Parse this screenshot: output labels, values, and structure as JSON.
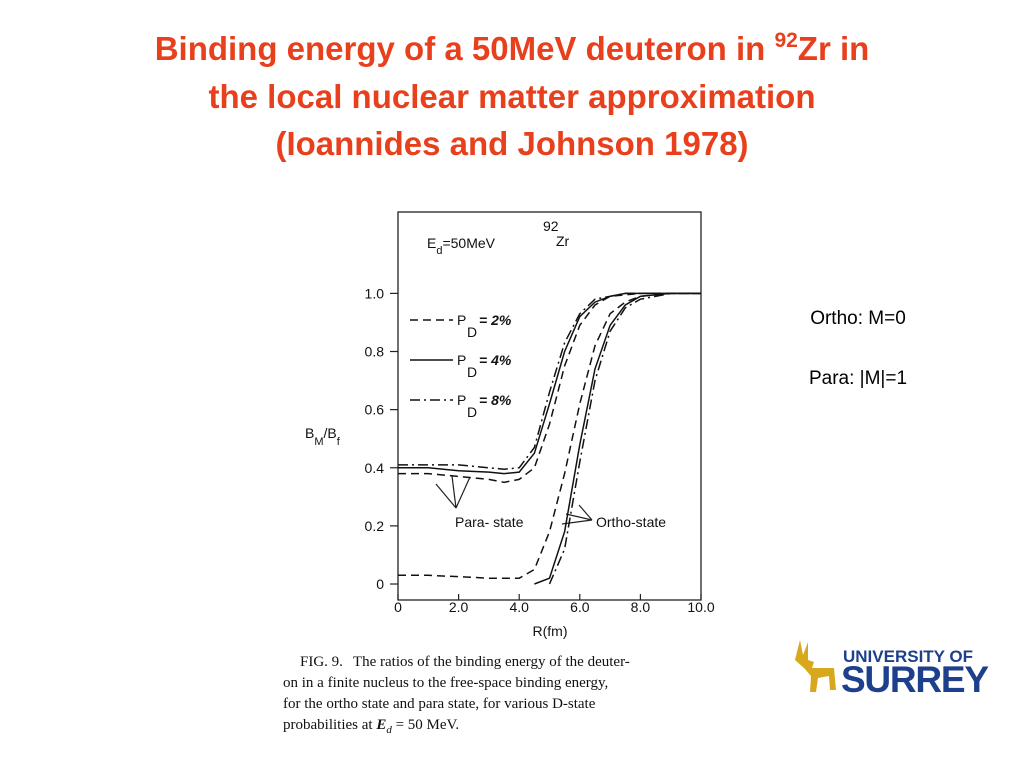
{
  "slide": {
    "title": [
      "Binding energy of a 50MeV deuteron in ",
      "92",
      "Zr in",
      "the local nuclear matter approximation",
      "(Ioannides and Johnson 1978)"
    ],
    "notes": [
      "Ortho: M=0",
      "Para: |M|=1"
    ],
    "caption": [
      "FIG. 9.",
      "The ratios of the binding energy of the deuter-",
      "on in a finite nucleus to the free-space binding energy,",
      "for the ortho state and para state,  for various D-state",
      "probabilities at ",
      "E",
      "d",
      " = 50 MeV."
    ],
    "logo": [
      "UNIVERSITY OF",
      "SURREY"
    ]
  },
  "chart_data": {
    "type": "line",
    "energy_label": [
      "E",
      "d",
      "=50MeV",
      "92",
      "Zr"
    ],
    "y_label": [
      "B",
      "M",
      "/B",
      "f"
    ],
    "x_label": "R(fm)",
    "legend_symbol": [
      "P",
      "D"
    ],
    "annotations": [
      "Para- state",
      "Ortho-state"
    ],
    "color": "#111111",
    "xlim": [
      0,
      10
    ],
    "ylim": [
      -0.055,
      1.28
    ],
    "xticks": [
      0,
      {
        "value": 2,
        "label": "2.0"
      },
      {
        "value": 4,
        "label": "4.0"
      },
      {
        "value": 6,
        "label": "6.0"
      },
      {
        "value": 8,
        "label": "8.0"
      },
      {
        "value": 10,
        "label": "10.0"
      }
    ],
    "yticks": [
      0,
      0.2,
      0.4,
      0.6,
      0.8,
      {
        "value": 1,
        "label": "1.0"
      }
    ],
    "x": [
      0,
      1,
      2,
      3,
      3.5,
      4,
      4.5,
      5,
      5.5,
      6,
      6.5,
      7,
      7.5,
      8,
      9,
      10
    ],
    "series": [
      {
        "name": "= 2%",
        "dash": "dashed",
        "values": [
          0.38,
          0.38,
          0.37,
          0.36,
          0.35,
          0.36,
          0.4,
          0.55,
          0.75,
          0.89,
          0.96,
          0.99,
          0.995,
          1,
          1,
          1
        ]
      },
      {
        "name": "= 4%",
        "dash": "solid",
        "values": [
          0.4,
          0.4,
          0.39,
          0.385,
          0.38,
          0.385,
          0.45,
          0.62,
          0.8,
          0.92,
          0.97,
          0.99,
          1,
          1,
          1,
          1
        ]
      },
      {
        "name": "= 8%",
        "dash": "dashdot",
        "values": [
          0.41,
          0.41,
          0.41,
          0.4,
          0.395,
          0.4,
          0.47,
          0.66,
          0.83,
          0.93,
          0.98,
          0.99,
          1,
          1,
          1,
          1
        ]
      }
    ],
    "ortho_series": [
      {
        "dash": "dashed",
        "values": [
          0.03,
          0.03,
          0.025,
          0.02,
          0.02,
          0.02,
          0.05,
          0.18,
          0.38,
          0.62,
          0.82,
          0.93,
          0.97,
          0.99,
          1,
          1
        ]
      },
      {
        "dash": "solid",
        "values": [
          null,
          null,
          null,
          null,
          null,
          null,
          0,
          0.02,
          0.18,
          0.48,
          0.74,
          0.89,
          0.96,
          0.99,
          1,
          1
        ]
      },
      {
        "dash": "dashdot",
        "values": [
          null,
          null,
          null,
          null,
          null,
          null,
          null,
          0,
          0.12,
          0.42,
          0.7,
          0.87,
          0.95,
          0.98,
          1,
          1
        ]
      }
    ]
  }
}
